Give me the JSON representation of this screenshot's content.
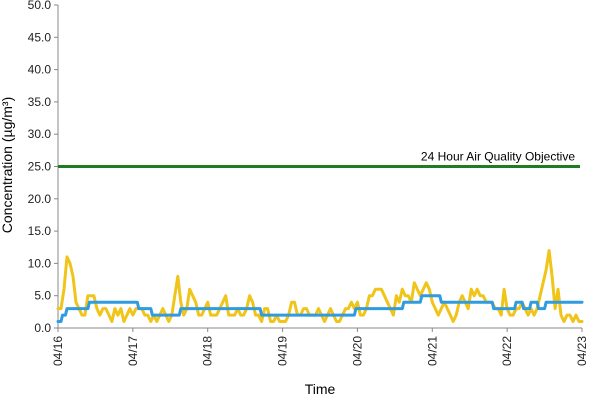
{
  "chart_data": {
    "type": "line",
    "xlabel": "Time",
    "ylabel": "Concentration (µg/m³)",
    "ylim": [
      0,
      50
    ],
    "yticks": [
      "0.0",
      "5.0",
      "10.0",
      "15.0",
      "20.0",
      "25.0",
      "30.0",
      "35.0",
      "40.0",
      "45.0",
      "50.0"
    ],
    "yticks_values": [
      0,
      5,
      10,
      15,
      20,
      25,
      30,
      35,
      40,
      45,
      50
    ],
    "xlim": [
      "04/16",
      "04/23"
    ],
    "xticks": [
      "04/16",
      "04/17",
      "04/18",
      "04/19",
      "04/20",
      "04/21",
      "04/22",
      "04/23"
    ],
    "grid": false,
    "legend": "none",
    "reference_line": {
      "value": 25,
      "label": "24 Hour Air Quality Objective",
      "color": "#1e7d1e"
    },
    "series": [
      {
        "color": "#f0c419",
        "points": [
          [
            0.0,
            3
          ],
          [
            0.04,
            3
          ],
          [
            0.08,
            6
          ],
          [
            0.12,
            11
          ],
          [
            0.16,
            10
          ],
          [
            0.2,
            8
          ],
          [
            0.24,
            4
          ],
          [
            0.28,
            3
          ],
          [
            0.32,
            2
          ],
          [
            0.36,
            2
          ],
          [
            0.4,
            5
          ],
          [
            0.44,
            5
          ],
          [
            0.48,
            5
          ],
          [
            0.52,
            3
          ],
          [
            0.56,
            2
          ],
          [
            0.6,
            3
          ],
          [
            0.64,
            3
          ],
          [
            0.68,
            2
          ],
          [
            0.72,
            1
          ],
          [
            0.76,
            3
          ],
          [
            0.8,
            2
          ],
          [
            0.84,
            3
          ],
          [
            0.88,
            1
          ],
          [
            0.92,
            2
          ],
          [
            0.96,
            3
          ],
          [
            1.0,
            2
          ],
          [
            1.04,
            3
          ],
          [
            1.08,
            3
          ],
          [
            1.12,
            3
          ],
          [
            1.16,
            2
          ],
          [
            1.2,
            2
          ],
          [
            1.24,
            1
          ],
          [
            1.28,
            2
          ],
          [
            1.32,
            1
          ],
          [
            1.36,
            2
          ],
          [
            1.4,
            3
          ],
          [
            1.44,
            2
          ],
          [
            1.48,
            1
          ],
          [
            1.52,
            2
          ],
          [
            1.56,
            5
          ],
          [
            1.6,
            8
          ],
          [
            1.64,
            4
          ],
          [
            1.68,
            2
          ],
          [
            1.72,
            3
          ],
          [
            1.76,
            6
          ],
          [
            1.8,
            5
          ],
          [
            1.84,
            4
          ],
          [
            1.88,
            2
          ],
          [
            1.92,
            2
          ],
          [
            1.96,
            3
          ],
          [
            2.0,
            4
          ],
          [
            2.04,
            2
          ],
          [
            2.08,
            2
          ],
          [
            2.12,
            2
          ],
          [
            2.16,
            3
          ],
          [
            2.2,
            4
          ],
          [
            2.24,
            5
          ],
          [
            2.28,
            2
          ],
          [
            2.32,
            2
          ],
          [
            2.36,
            2
          ],
          [
            2.4,
            3
          ],
          [
            2.44,
            2
          ],
          [
            2.48,
            2
          ],
          [
            2.52,
            3
          ],
          [
            2.56,
            5
          ],
          [
            2.6,
            4
          ],
          [
            2.64,
            2
          ],
          [
            2.68,
            2
          ],
          [
            2.72,
            1
          ],
          [
            2.76,
            3
          ],
          [
            2.8,
            3
          ],
          [
            2.84,
            1
          ],
          [
            2.88,
            1
          ],
          [
            2.92,
            2
          ],
          [
            2.96,
            1
          ],
          [
            3.0,
            1
          ],
          [
            3.04,
            1
          ],
          [
            3.08,
            2
          ],
          [
            3.12,
            4
          ],
          [
            3.16,
            4
          ],
          [
            3.2,
            2
          ],
          [
            3.24,
            2
          ],
          [
            3.28,
            3
          ],
          [
            3.32,
            3
          ],
          [
            3.36,
            2
          ],
          [
            3.4,
            2
          ],
          [
            3.44,
            2
          ],
          [
            3.48,
            3
          ],
          [
            3.52,
            2
          ],
          [
            3.56,
            1
          ],
          [
            3.6,
            2
          ],
          [
            3.64,
            3
          ],
          [
            3.68,
            2
          ],
          [
            3.72,
            1
          ],
          [
            3.76,
            1
          ],
          [
            3.8,
            2
          ],
          [
            3.84,
            3
          ],
          [
            3.88,
            3
          ],
          [
            3.92,
            4
          ],
          [
            3.96,
            3
          ],
          [
            4.0,
            4
          ],
          [
            4.04,
            2
          ],
          [
            4.08,
            2
          ],
          [
            4.12,
            3
          ],
          [
            4.16,
            5
          ],
          [
            4.2,
            5
          ],
          [
            4.24,
            6
          ],
          [
            4.28,
            6
          ],
          [
            4.32,
            6
          ],
          [
            4.36,
            5
          ],
          [
            4.4,
            4
          ],
          [
            4.44,
            3
          ],
          [
            4.48,
            2
          ],
          [
            4.52,
            5
          ],
          [
            4.56,
            4
          ],
          [
            4.6,
            6
          ],
          [
            4.64,
            5
          ],
          [
            4.68,
            5
          ],
          [
            4.72,
            4
          ],
          [
            4.76,
            7
          ],
          [
            4.8,
            6
          ],
          [
            4.84,
            5
          ],
          [
            4.88,
            6
          ],
          [
            4.92,
            7
          ],
          [
            4.96,
            6
          ],
          [
            5.0,
            4
          ],
          [
            5.04,
            3
          ],
          [
            5.08,
            2
          ],
          [
            5.12,
            3
          ],
          [
            5.16,
            4
          ],
          [
            5.2,
            3
          ],
          [
            5.24,
            2
          ],
          [
            5.28,
            1
          ],
          [
            5.32,
            2
          ],
          [
            5.36,
            4
          ],
          [
            5.4,
            5
          ],
          [
            5.44,
            4
          ],
          [
            5.48,
            3
          ],
          [
            5.52,
            6
          ],
          [
            5.56,
            5
          ],
          [
            5.6,
            6
          ],
          [
            5.64,
            5
          ],
          [
            5.68,
            5
          ],
          [
            5.72,
            4
          ],
          [
            5.76,
            4
          ],
          [
            5.8,
            4
          ],
          [
            5.84,
            3
          ],
          [
            5.88,
            3
          ],
          [
            5.92,
            2
          ],
          [
            5.96,
            6
          ],
          [
            6.0,
            3
          ],
          [
            6.04,
            2
          ],
          [
            6.08,
            2
          ],
          [
            6.12,
            3
          ],
          [
            6.16,
            3
          ],
          [
            6.2,
            4
          ],
          [
            6.24,
            3
          ],
          [
            6.28,
            2
          ],
          [
            6.32,
            3
          ],
          [
            6.36,
            2
          ],
          [
            6.4,
            3
          ],
          [
            6.44,
            5
          ],
          [
            6.48,
            7
          ],
          [
            6.52,
            9
          ],
          [
            6.56,
            12
          ],
          [
            6.6,
            8
          ],
          [
            6.64,
            3
          ],
          [
            6.68,
            6
          ],
          [
            6.72,
            2
          ],
          [
            6.76,
            1
          ],
          [
            6.8,
            2
          ],
          [
            6.84,
            2
          ],
          [
            6.88,
            1
          ],
          [
            6.92,
            2
          ],
          [
            6.96,
            1
          ],
          [
            7.0,
            1
          ]
        ]
      },
      {
        "color": "#2f9be0",
        "points": [
          [
            0.0,
            1
          ],
          [
            0.04,
            1
          ],
          [
            0.06,
            2
          ],
          [
            0.1,
            2
          ],
          [
            0.12,
            3
          ],
          [
            0.16,
            3
          ],
          [
            0.4,
            3
          ],
          [
            0.42,
            4
          ],
          [
            0.8,
            4
          ],
          [
            0.96,
            4
          ],
          [
            1.0,
            4
          ],
          [
            1.06,
            4
          ],
          [
            1.08,
            3
          ],
          [
            1.24,
            3
          ],
          [
            1.26,
            2
          ],
          [
            1.62,
            2
          ],
          [
            1.64,
            3
          ],
          [
            2.7,
            3
          ],
          [
            2.72,
            2
          ],
          [
            3.96,
            2
          ],
          [
            3.98,
            3
          ],
          [
            4.6,
            3
          ],
          [
            4.62,
            4
          ],
          [
            4.84,
            4
          ],
          [
            4.86,
            5
          ],
          [
            5.1,
            5
          ],
          [
            5.12,
            4
          ],
          [
            5.8,
            4
          ],
          [
            5.82,
            3
          ],
          [
            6.1,
            3
          ],
          [
            6.12,
            4
          ],
          [
            6.2,
            4
          ],
          [
            6.22,
            3
          ],
          [
            6.3,
            3
          ],
          [
            6.32,
            4
          ],
          [
            6.4,
            4
          ],
          [
            6.42,
            3
          ],
          [
            6.5,
            3
          ],
          [
            6.52,
            4
          ],
          [
            7.0,
            4
          ]
        ]
      }
    ]
  }
}
